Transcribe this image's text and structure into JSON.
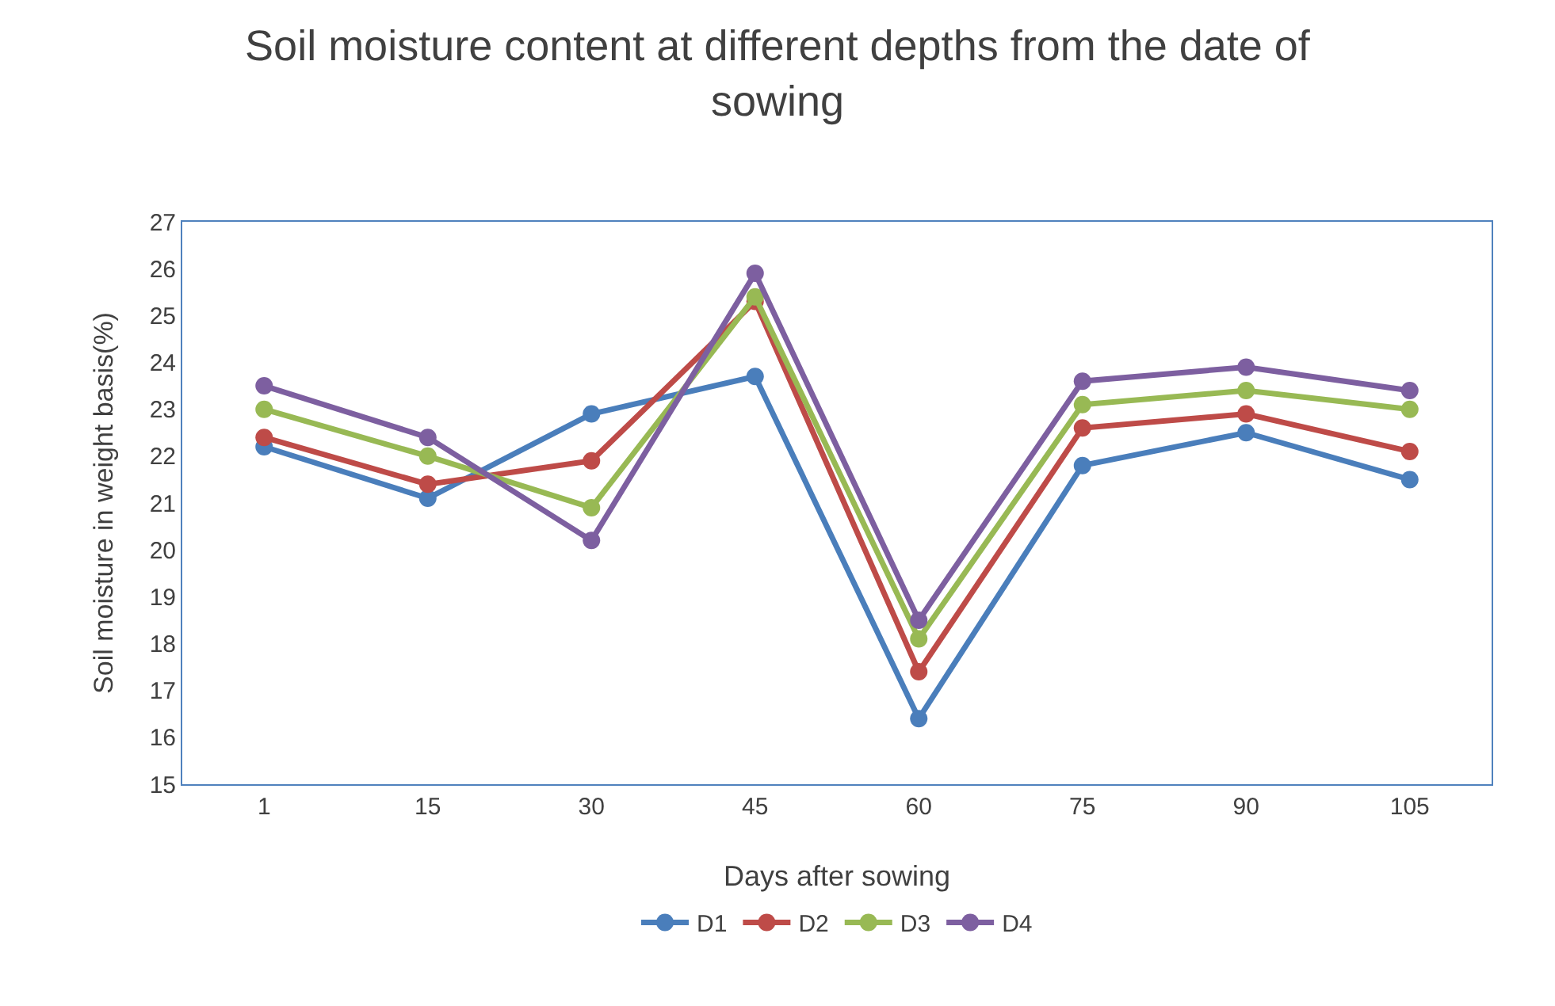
{
  "chart_data": {
    "type": "line",
    "title": "Soil moisture content at different depths from the date of sowing",
    "xlabel": "Days after sowing",
    "ylabel": "Soil moisture in weight basis(%)",
    "categories": [
      "1",
      "15",
      "30",
      "45",
      "60",
      "75",
      "90",
      "105"
    ],
    "series": [
      {
        "name": "D1",
        "color": "#4a7ebb",
        "values": [
          22.2,
          21.1,
          22.9,
          23.7,
          16.4,
          21.8,
          22.5,
          21.5
        ]
      },
      {
        "name": "D2",
        "color": "#be4b48",
        "values": [
          22.4,
          21.4,
          21.9,
          25.3,
          17.4,
          22.6,
          22.9,
          22.1
        ]
      },
      {
        "name": "D3",
        "color": "#98b954",
        "values": [
          23.0,
          22.0,
          20.9,
          25.4,
          18.1,
          23.1,
          23.4,
          23.0
        ]
      },
      {
        "name": "D4",
        "color": "#7d5fa0",
        "values": [
          23.5,
          22.4,
          20.2,
          25.9,
          18.5,
          23.6,
          23.9,
          23.4
        ]
      }
    ],
    "ylim": [
      15,
      27
    ],
    "yticks": [
      15,
      16,
      17,
      18,
      19,
      20,
      21,
      22,
      23,
      24,
      25,
      26,
      27
    ],
    "grid": false,
    "legend": "bottom",
    "marker": "circle",
    "line_style": "solid"
  }
}
